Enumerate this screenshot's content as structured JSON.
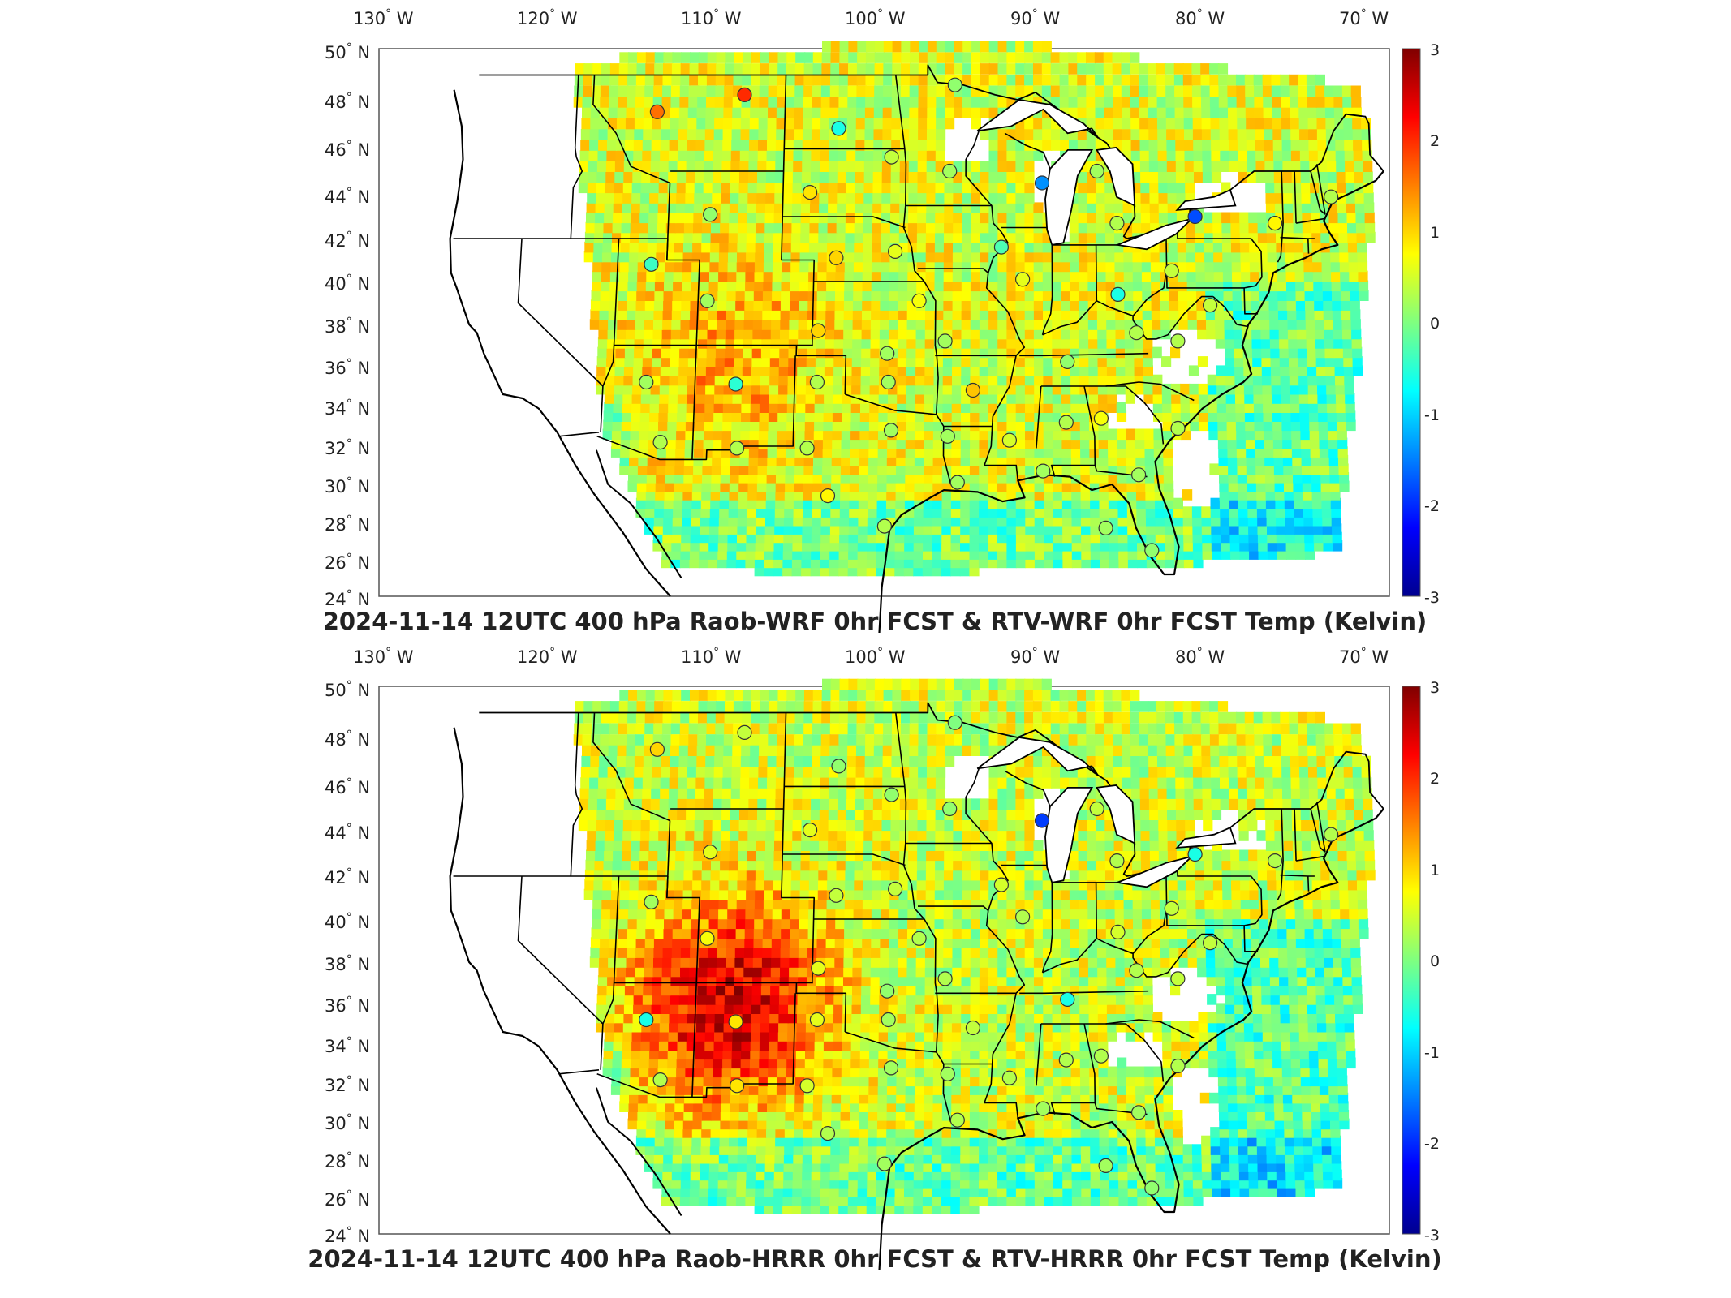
{
  "panels": [
    {
      "id": "wrf",
      "title": "2024-11-14 12UTC 400 hPa Raob-WRF 0hr FCST & RTV-WRF 0hr FCST Temp (Kelvin)",
      "bias": 0.55,
      "hot_zone_strength": 0.6,
      "stations": [
        {
          "lon": -112.0,
          "lat": 47.5,
          "v": 1.6
        },
        {
          "lon": -106.6,
          "lat": 48.2,
          "v": 2.0
        },
        {
          "lon": -100.7,
          "lat": 46.8,
          "v": -0.6
        },
        {
          "lon": -97.4,
          "lat": 45.6,
          "v": 0.4
        },
        {
          "lon": -93.5,
          "lat": 48.6,
          "v": 0.1
        },
        {
          "lon": -93.8,
          "lat": 45.0,
          "v": 0.2
        },
        {
          "lon": -88.1,
          "lat": 44.5,
          "v": -1.4
        },
        {
          "lon": -84.7,
          "lat": 45.0,
          "v": 0.2
        },
        {
          "lon": -83.5,
          "lat": 42.7,
          "v": 0.3
        },
        {
          "lon": -78.7,
          "lat": 43.0,
          "v": -1.8
        },
        {
          "lon": -73.8,
          "lat": 42.7,
          "v": 0.8
        },
        {
          "lon": -70.3,
          "lat": 43.9,
          "v": 0.3
        },
        {
          "lon": -108.5,
          "lat": 43.1,
          "v": 0.1
        },
        {
          "lon": -102.4,
          "lat": 44.1,
          "v": 0.9
        },
        {
          "lon": -100.7,
          "lat": 41.1,
          "v": 1.0
        },
        {
          "lon": -97.1,
          "lat": 41.4,
          "v": 0.6
        },
        {
          "lon": -90.6,
          "lat": 41.6,
          "v": -0.3
        },
        {
          "lon": -89.3,
          "lat": 40.1,
          "v": 0.6
        },
        {
          "lon": -83.5,
          "lat": 39.4,
          "v": -0.6
        },
        {
          "lon": -80.2,
          "lat": 40.5,
          "v": 0.4
        },
        {
          "lon": -112.0,
          "lat": 40.8,
          "v": -0.4
        },
        {
          "lon": -108.5,
          "lat": 39.1,
          "v": 0.2
        },
        {
          "lon": -101.7,
          "lat": 37.7,
          "v": 1.0
        },
        {
          "lon": -97.5,
          "lat": 36.6,
          "v": 0.2
        },
        {
          "lon": -95.6,
          "lat": 39.1,
          "v": 0.7
        },
        {
          "lon": -94.0,
          "lat": 37.2,
          "v": 0.2
        },
        {
          "lon": -86.6,
          "lat": 36.2,
          "v": 0.1
        },
        {
          "lon": -79.9,
          "lat": 37.2,
          "v": 0.3
        },
        {
          "lon": -77.9,
          "lat": 38.9,
          "v": 0.4
        },
        {
          "lon": -82.4,
          "lat": 37.6,
          "v": 0.3
        },
        {
          "lon": -112.0,
          "lat": 35.2,
          "v": 0.2
        },
        {
          "lon": -106.6,
          "lat": 35.1,
          "v": -0.5
        },
        {
          "lon": -101.7,
          "lat": 35.2,
          "v": 0.3
        },
        {
          "lon": -97.4,
          "lat": 35.2,
          "v": 0.2
        },
        {
          "lon": -92.3,
          "lat": 34.8,
          "v": 1.1
        },
        {
          "lon": -86.7,
          "lat": 33.2,
          "v": 0.3
        },
        {
          "lon": -84.6,
          "lat": 33.4,
          "v": 0.7
        },
        {
          "lon": -80.0,
          "lat": 32.9,
          "v": 0.3
        },
        {
          "lon": -111.0,
          "lat": 32.2,
          "v": 0.3
        },
        {
          "lon": -106.4,
          "lat": 31.9,
          "v": 0.3
        },
        {
          "lon": -102.2,
          "lat": 31.9,
          "v": 0.3
        },
        {
          "lon": -97.2,
          "lat": 32.8,
          "v": 0.2
        },
        {
          "lon": -93.8,
          "lat": 32.5,
          "v": 0.2
        },
        {
          "lon": -90.1,
          "lat": 32.3,
          "v": 0.5
        },
        {
          "lon": -100.9,
          "lat": 29.4,
          "v": 0.8
        },
        {
          "lon": -97.5,
          "lat": 27.8,
          "v": 0.3
        },
        {
          "lon": -93.2,
          "lat": 30.1,
          "v": 0.2
        },
        {
          "lon": -88.1,
          "lat": 30.7,
          "v": 0.2
        },
        {
          "lon": -82.4,
          "lat": 30.5,
          "v": 0.2
        },
        {
          "lon": -84.4,
          "lat": 27.7,
          "v": 0.2
        },
        {
          "lon": -81.7,
          "lat": 26.5,
          "v": 0.1
        }
      ]
    },
    {
      "id": "hrrr",
      "title": "2024-11-14 12UTC 400 hPa Raob-HRRR 0hr FCST & RTV-HRRR 0hr FCST Temp (Kelvin)",
      "bias": 0.45,
      "hot_zone_strength": 1.8,
      "stations": [
        {
          "lon": -112.0,
          "lat": 47.5,
          "v": 1.0
        },
        {
          "lon": -106.6,
          "lat": 48.2,
          "v": 0.4
        },
        {
          "lon": -100.7,
          "lat": 46.8,
          "v": 0.1
        },
        {
          "lon": -97.4,
          "lat": 45.6,
          "v": 0.1
        },
        {
          "lon": -93.5,
          "lat": 48.6,
          "v": 0.0
        },
        {
          "lon": -93.8,
          "lat": 45.0,
          "v": 0.1
        },
        {
          "lon": -88.1,
          "lat": 44.5,
          "v": -1.9
        },
        {
          "lon": -84.7,
          "lat": 45.0,
          "v": 0.4
        },
        {
          "lon": -83.5,
          "lat": 42.7,
          "v": 0.3
        },
        {
          "lon": -78.7,
          "lat": 43.0,
          "v": -0.6
        },
        {
          "lon": -73.8,
          "lat": 42.7,
          "v": 0.3
        },
        {
          "lon": -70.3,
          "lat": 43.9,
          "v": 0.3
        },
        {
          "lon": -108.5,
          "lat": 43.1,
          "v": 0.6
        },
        {
          "lon": -102.4,
          "lat": 44.1,
          "v": 0.6
        },
        {
          "lon": -100.7,
          "lat": 41.1,
          "v": 0.4
        },
        {
          "lon": -97.1,
          "lat": 41.4,
          "v": 0.4
        },
        {
          "lon": -90.6,
          "lat": 41.6,
          "v": 0.5
        },
        {
          "lon": -89.3,
          "lat": 40.1,
          "v": 0.3
        },
        {
          "lon": -83.5,
          "lat": 39.4,
          "v": 0.5
        },
        {
          "lon": -80.2,
          "lat": 40.5,
          "v": 0.4
        },
        {
          "lon": -112.0,
          "lat": 40.8,
          "v": 0.2
        },
        {
          "lon": -108.5,
          "lat": 39.1,
          "v": 0.7
        },
        {
          "lon": -101.7,
          "lat": 37.7,
          "v": 0.6
        },
        {
          "lon": -97.5,
          "lat": 36.6,
          "v": 0.1
        },
        {
          "lon": -95.6,
          "lat": 39.1,
          "v": 0.3
        },
        {
          "lon": -94.0,
          "lat": 37.2,
          "v": 0.3
        },
        {
          "lon": -86.6,
          "lat": 36.2,
          "v": -0.6
        },
        {
          "lon": -79.9,
          "lat": 37.2,
          "v": 0.4
        },
        {
          "lon": -77.9,
          "lat": 38.9,
          "v": 0.4
        },
        {
          "lon": -82.4,
          "lat": 37.6,
          "v": 0.3
        },
        {
          "lon": -112.0,
          "lat": 35.2,
          "v": -0.6
        },
        {
          "lon": -106.6,
          "lat": 35.1,
          "v": 0.9
        },
        {
          "lon": -101.7,
          "lat": 35.2,
          "v": 0.6
        },
        {
          "lon": -97.4,
          "lat": 35.2,
          "v": 0.2
        },
        {
          "lon": -92.3,
          "lat": 34.8,
          "v": 0.4
        },
        {
          "lon": -86.7,
          "lat": 33.2,
          "v": 0.3
        },
        {
          "lon": -84.6,
          "lat": 33.4,
          "v": 0.3
        },
        {
          "lon": -80.0,
          "lat": 32.9,
          "v": 0.3
        },
        {
          "lon": -111.0,
          "lat": 32.2,
          "v": 0.3
        },
        {
          "lon": -106.4,
          "lat": 31.9,
          "v": 0.9
        },
        {
          "lon": -102.2,
          "lat": 31.9,
          "v": 0.5
        },
        {
          "lon": -97.2,
          "lat": 32.8,
          "v": 0.2
        },
        {
          "lon": -93.8,
          "lat": 32.5,
          "v": 0.2
        },
        {
          "lon": -90.1,
          "lat": 32.3,
          "v": 0.3
        },
        {
          "lon": -100.9,
          "lat": 29.4,
          "v": 0.3
        },
        {
          "lon": -97.5,
          "lat": 27.8,
          "v": 0.2
        },
        {
          "lon": -93.2,
          "lat": 30.1,
          "v": 0.3
        },
        {
          "lon": -88.1,
          "lat": 30.7,
          "v": 0.2
        },
        {
          "lon": -82.4,
          "lat": 30.5,
          "v": 0.2
        },
        {
          "lon": -84.4,
          "lat": 27.7,
          "v": 0.2
        },
        {
          "lon": -81.7,
          "lat": 26.5,
          "v": 0.1
        }
      ]
    }
  ],
  "lon_ticks": [
    {
      "value": -130,
      "num": "130",
      "hemi": "W"
    },
    {
      "value": -120,
      "num": "120",
      "hemi": "W"
    },
    {
      "value": -110,
      "num": "110",
      "hemi": "W"
    },
    {
      "value": -100,
      "num": "100",
      "hemi": "W"
    },
    {
      "value": -90,
      "num": "90",
      "hemi": "W"
    },
    {
      "value": -80,
      "num": "80",
      "hemi": "W"
    },
    {
      "value": -70,
      "num": "70",
      "hemi": "W"
    }
  ],
  "lat_ticks": [
    {
      "value": 50,
      "num": "50",
      "hemi": "N"
    },
    {
      "value": 48,
      "num": "48",
      "hemi": "N"
    },
    {
      "value": 46,
      "num": "46",
      "hemi": "N"
    },
    {
      "value": 44,
      "num": "44",
      "hemi": "N"
    },
    {
      "value": 42,
      "num": "42",
      "hemi": "N"
    },
    {
      "value": 40,
      "num": "40",
      "hemi": "N"
    },
    {
      "value": 38,
      "num": "38",
      "hemi": "N"
    },
    {
      "value": 36,
      "num": "36",
      "hemi": "N"
    },
    {
      "value": 34,
      "num": "34",
      "hemi": "N"
    },
    {
      "value": 32,
      "num": "32",
      "hemi": "N"
    },
    {
      "value": 30,
      "num": "30",
      "hemi": "N"
    },
    {
      "value": 28,
      "num": "28",
      "hemi": "N"
    },
    {
      "value": 26,
      "num": "26",
      "hemi": "N"
    },
    {
      "value": 24,
      "num": "24",
      "hemi": "N"
    }
  ],
  "degree_symbol": "°",
  "colorbar": {
    "range": [
      -3,
      3
    ],
    "tick_values": [
      3,
      2,
      1,
      0,
      -1,
      -2,
      -3
    ],
    "tick_labels": [
      "3",
      "2",
      "1",
      "0",
      "-1",
      "-2",
      "-3"
    ],
    "colormap": "jet"
  },
  "colors": {
    "axes_frame": "#555555",
    "coastline": "#000000",
    "state_lines": "#000000",
    "no_data": "#ffffff"
  }
}
